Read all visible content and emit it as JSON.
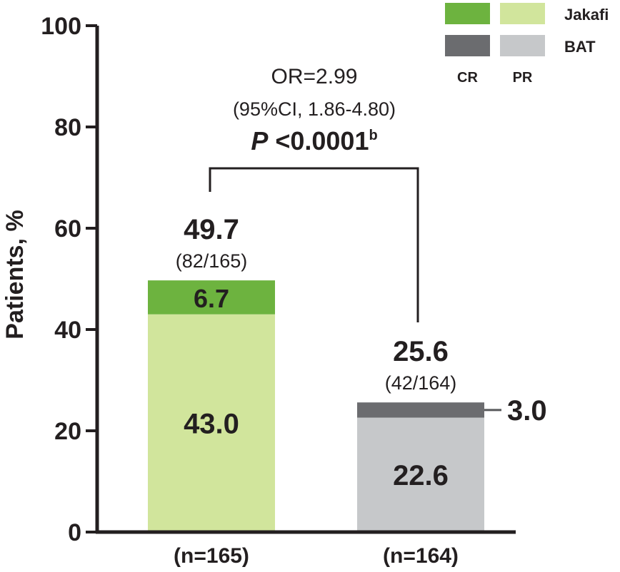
{
  "chart_data": {
    "type": "bar",
    "stacked": true,
    "ylabel": "Patients, %",
    "ylim": [
      0,
      100
    ],
    "yticks": [
      "0",
      "20",
      "40",
      "60",
      "80",
      "100"
    ],
    "categories": [
      "(n=165)",
      "(n=164)"
    ],
    "bars": [
      {
        "group": "Jakafi",
        "total": 49.7,
        "total_label": "49.7",
        "fraction_label": "(82/165)",
        "segments": [
          {
            "type": "PR",
            "value": 43.0,
            "label": "43.0",
            "color": "#d1e59c"
          },
          {
            "type": "CR",
            "value": 6.7,
            "label": "6.7",
            "color": "#6db33f"
          }
        ]
      },
      {
        "group": "BAT",
        "total": 25.6,
        "total_label": "25.6",
        "fraction_label": "(42/164)",
        "segments": [
          {
            "type": "PR",
            "value": 22.6,
            "label": "22.6",
            "color": "#c6c8ca"
          },
          {
            "type": "CR",
            "value": 3.0,
            "label": "3.0",
            "color": "#6b6c6f"
          }
        ]
      }
    ],
    "legend": {
      "rows": [
        {
          "name": "Jakafi",
          "cr_color": "#6db33f",
          "pr_color": "#d1e59c"
        },
        {
          "name": "BAT",
          "cr_color": "#6b6c6f",
          "pr_color": "#c6c8ca"
        }
      ],
      "columns": [
        "CR",
        "PR"
      ],
      "placement": "top-right"
    },
    "annotation": {
      "or_text": "OR=2.99",
      "ci_text": "(95%CI, 1.86-4.80)",
      "p_italic": "P",
      "p_value": " <0.0001",
      "p_superscript": "b"
    },
    "grid": false
  }
}
